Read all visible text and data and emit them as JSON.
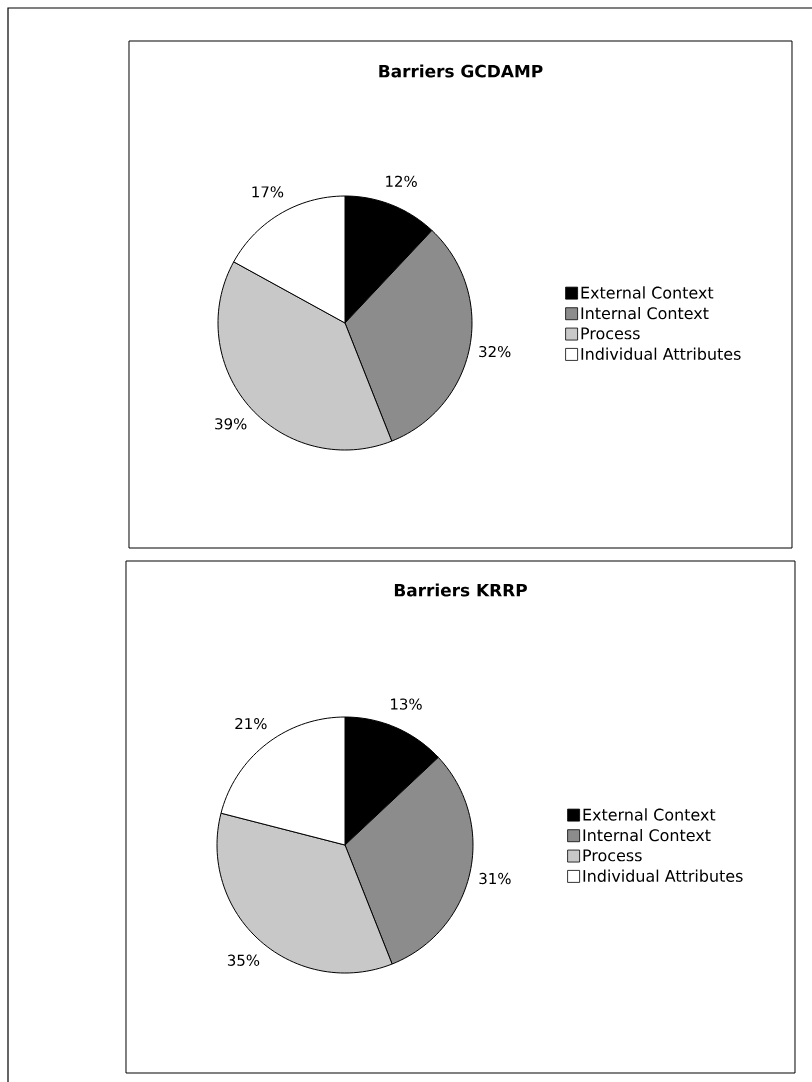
{
  "chart_data": [
    {
      "type": "pie",
      "title": "Barriers GCDAMP",
      "categories": [
        "External Context",
        "Internal Context",
        "Process",
        "Individual Attributes"
      ],
      "values": [
        12,
        32,
        39,
        17
      ],
      "colors": [
        "#000000",
        "#8c8c8c",
        "#c8c8c8",
        "#ffffff"
      ],
      "value_labels": [
        "12%",
        "32%",
        "39%",
        "17%"
      ],
      "legend": "right"
    },
    {
      "type": "pie",
      "title": "Barriers KRRP",
      "categories": [
        "External Context",
        "Internal Context",
        "Process",
        "Individual Attributes"
      ],
      "values": [
        13,
        31,
        35,
        21
      ],
      "colors": [
        "#000000",
        "#8c8c8c",
        "#c8c8c8",
        "#ffffff"
      ],
      "value_labels": [
        "13%",
        "31%",
        "35%",
        "21%"
      ],
      "legend": "right"
    }
  ]
}
